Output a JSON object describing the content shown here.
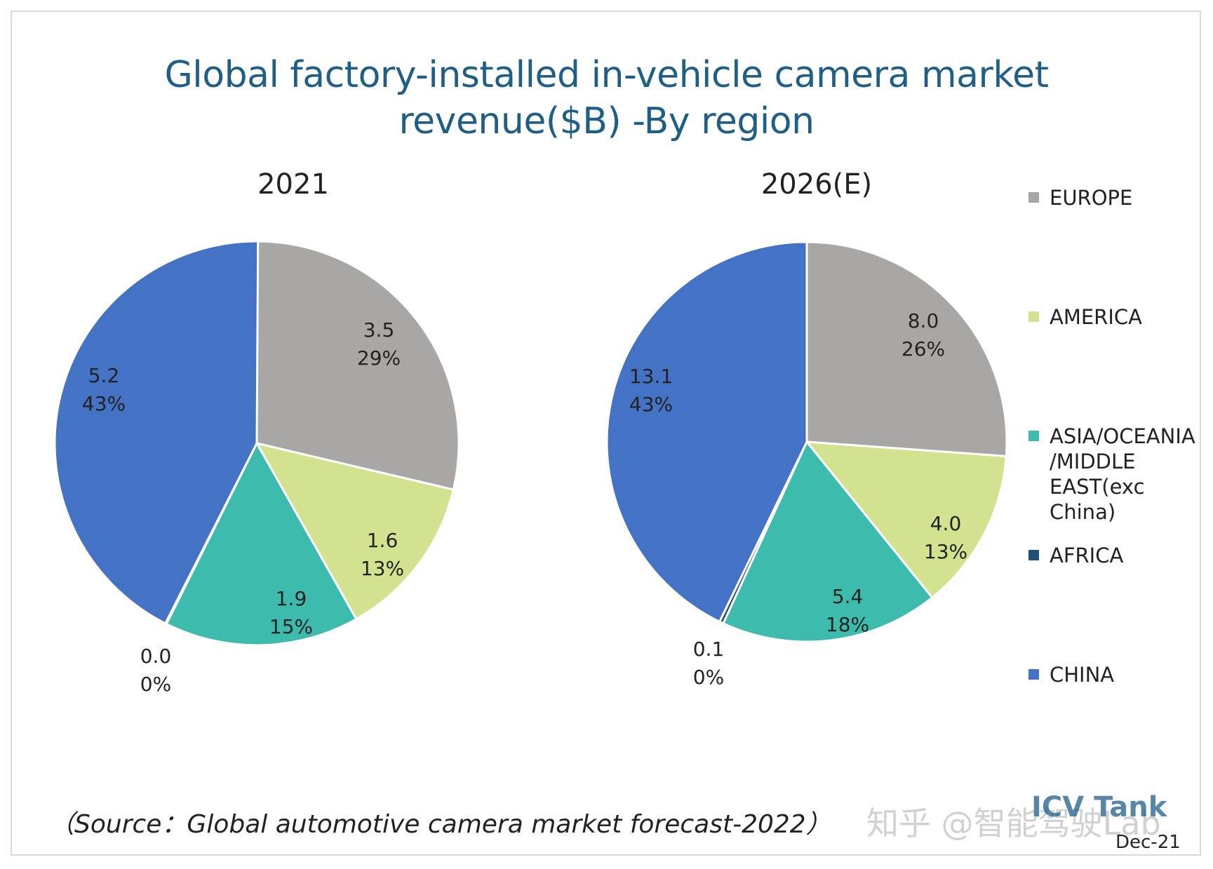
{
  "chart_data": {
    "type": "pie",
    "title": "Global factory-installed in-vehicle camera market revenue($B) -By region",
    "title_lines": [
      "Global factory-installed in-vehicle camera market",
      "revenue($B) -By region"
    ],
    "unit": "$B",
    "categories": [
      "EUROPE",
      "AMERICA",
      "ASIA/OCEANIA/MIDDLE EAST(exc China)",
      "AFRICA",
      "CHINA"
    ],
    "legend_lines": [
      [
        "EUROPE"
      ],
      [
        "AMERICA"
      ],
      [
        "ASIA/OCEANIA",
        "/MIDDLE",
        "EAST(exc China)"
      ],
      [
        "AFRICA"
      ],
      [
        "CHINA"
      ]
    ],
    "colors": [
      "#a9a6a6",
      "#d3e28f",
      "#3dbbad",
      "#1f4e79",
      "#4472c4"
    ],
    "legend_position": "right",
    "pies": [
      {
        "name": "2021",
        "values": [
          3.5,
          1.6,
          1.9,
          0.0,
          5.2
        ],
        "value_labels": [
          "3.5",
          "1.6",
          "1.9",
          "0.0",
          "5.2"
        ],
        "percents": [
          "29%",
          "13%",
          "15%",
          "0%",
          "43%"
        ]
      },
      {
        "name": "2026(E)",
        "values": [
          8.0,
          4.0,
          5.4,
          0.1,
          13.1
        ],
        "value_labels": [
          "8.0",
          "4.0",
          "5.4",
          "0.1",
          "13.1"
        ],
        "percents": [
          "26%",
          "13%",
          "18%",
          "0%",
          "43%"
        ]
      }
    ]
  },
  "footer": {
    "source": "（Source：Global automotive camera market forecast-2022）",
    "watermark": "知乎 @智能驾驶Lab",
    "brand": "ICV Tank",
    "date": "Dec-21"
  }
}
